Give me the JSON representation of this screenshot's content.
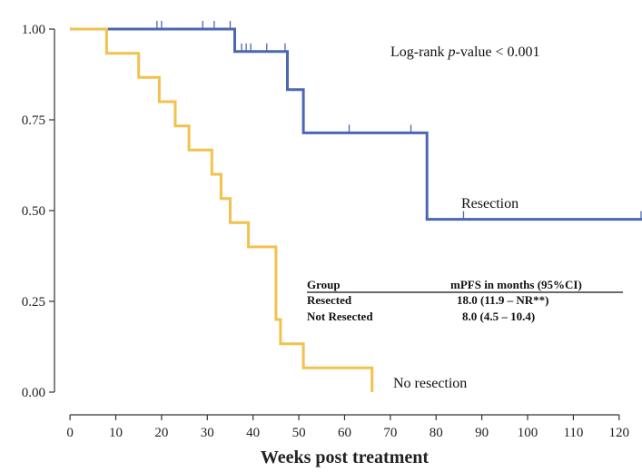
{
  "chart_data": {
    "type": "line",
    "chart_kind": "kaplan-meier step curve",
    "title": "",
    "xlabel": "Weeks post treatment",
    "ylabel": "",
    "xlim": [
      -3,
      125
    ],
    "ylim": [
      -0.05,
      1.05
    ],
    "x_ticks": [
      0,
      10,
      20,
      30,
      40,
      50,
      60,
      70,
      80,
      90,
      100,
      110,
      120
    ],
    "y_ticks": [
      "0.00",
      "0.25",
      "0.50",
      "0.75",
      "1.00"
    ],
    "y_tick_values": [
      0,
      0.25,
      0.5,
      0.75,
      1.0
    ],
    "grid": false,
    "annotations": {
      "pvalue_prefix": "Log-rank ",
      "pvalue_italic": "p",
      "pvalue_suffix": "-value < 0.001"
    },
    "series": [
      {
        "name": "Resection",
        "color": "#4a67b0",
        "steps": [
          [
            0,
            1.0
          ],
          [
            8,
            1.0
          ],
          [
            36,
            1.0
          ],
          [
            36,
            0.938
          ],
          [
            47.5,
            0.938
          ],
          [
            47.5,
            0.833
          ],
          [
            51,
            0.833
          ],
          [
            51,
            0.714
          ],
          [
            78,
            0.714
          ],
          [
            78,
            0.476
          ],
          [
            125,
            0.476
          ]
        ],
        "censor_times": [
          19,
          20,
          29,
          31.5,
          35,
          37.5,
          38.5,
          39.5,
          43,
          47,
          61,
          74.5,
          86,
          125
        ],
        "censor_values": [
          1.0,
          1.0,
          1.0,
          1.0,
          1.0,
          0.938,
          0.938,
          0.938,
          0.938,
          0.938,
          0.714,
          0.714,
          0.476,
          0.476
        ]
      },
      {
        "name": "No resection",
        "color": "#f2c14e",
        "steps": [
          [
            0,
            1.0
          ],
          [
            8,
            1.0
          ],
          [
            8,
            0.933
          ],
          [
            15,
            0.933
          ],
          [
            15,
            0.867
          ],
          [
            19.5,
            0.867
          ],
          [
            19.5,
            0.8
          ],
          [
            23,
            0.8
          ],
          [
            23,
            0.733
          ],
          [
            26,
            0.733
          ],
          [
            26,
            0.667
          ],
          [
            31,
            0.667
          ],
          [
            31,
            0.6
          ],
          [
            33,
            0.6
          ],
          [
            33,
            0.533
          ],
          [
            35,
            0.533
          ],
          [
            35,
            0.467
          ],
          [
            39,
            0.467
          ],
          [
            39,
            0.4
          ],
          [
            45,
            0.4
          ],
          [
            45,
            0.2
          ],
          [
            46,
            0.2
          ],
          [
            46,
            0.133
          ],
          [
            51,
            0.133
          ],
          [
            51,
            0.067
          ],
          [
            66,
            0.067
          ],
          [
            66,
            0.0
          ]
        ]
      }
    ],
    "table": {
      "headers": [
        "Group",
        "mPFS in months (95%CI)"
      ],
      "rows": [
        [
          "Resected",
          "18.0 (11.9 – NR**)"
        ],
        [
          "Not Resected",
          "8.0 (4.5 – 10.4)"
        ]
      ]
    }
  }
}
